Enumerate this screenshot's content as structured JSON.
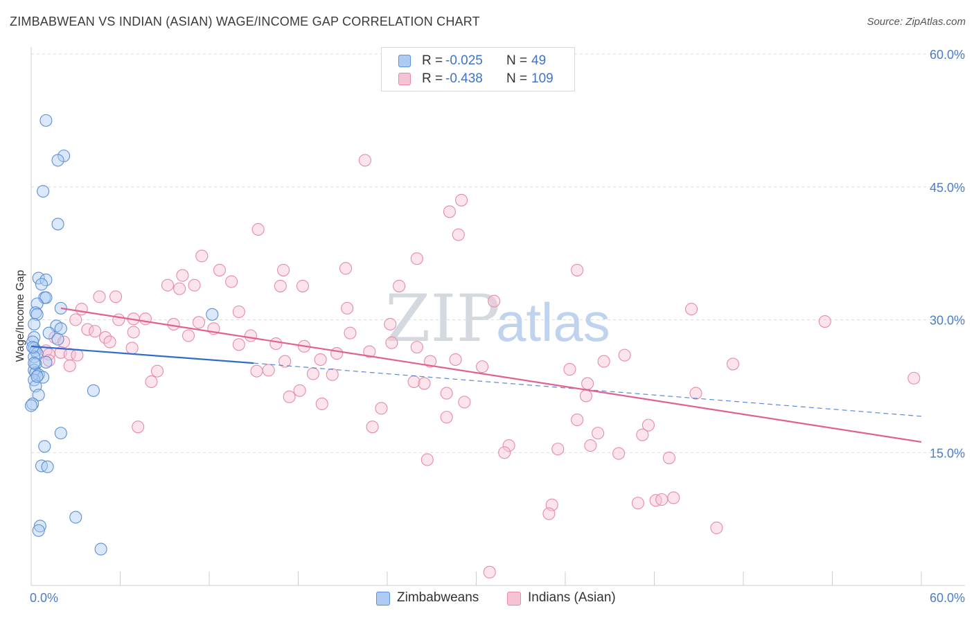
{
  "title": "ZIMBABWEAN VS INDIAN (ASIAN) WAGE/INCOME GAP CORRELATION CHART",
  "source": "Source: ZipAtlas.com",
  "watermark": {
    "zip": "ZIP",
    "atlas": "atlas"
  },
  "legend": {
    "series1": {
      "r_label": "R =",
      "r_value": "-0.025",
      "n_label": "N =",
      "n_value": "49"
    },
    "series2": {
      "r_label": "R =",
      "r_value": "-0.438",
      "n_label": "N =",
      "n_value": "109"
    }
  },
  "bottom_legend": {
    "series1": "Zimbabweans",
    "series2": "Indians (Asian)"
  },
  "colors": {
    "blue_fill": "#aecbf3",
    "blue_stroke": "#5b8fd6",
    "blue_line": "#2f6ccc",
    "pink_fill": "#f6c3d4",
    "pink_stroke": "#e68aa9",
    "pink_line": "#e0608e"
  },
  "chart_data": {
    "type": "scatter",
    "title": "ZIMBABWEAN VS INDIAN (ASIAN) WAGE/INCOME GAP CORRELATION CHART",
    "xlabel": "",
    "ylabel": "Wage/Income Gap",
    "xlim": [
      0,
      60
    ],
    "ylim": [
      0,
      60
    ],
    "x_tick_labels": [
      "0.0%",
      "60.0%"
    ],
    "y_ticks": [
      15,
      30,
      45,
      60
    ],
    "y_tick_labels": [
      "15.0%",
      "30.0%",
      "45.0%",
      "60.0%"
    ],
    "grid": true,
    "series": [
      {
        "name": "Zimbabweans",
        "points": [
          [
            1.0,
            52.5
          ],
          [
            2.2,
            48.5
          ],
          [
            1.8,
            48.0
          ],
          [
            0.8,
            44.5
          ],
          [
            1.8,
            40.8
          ],
          [
            0.5,
            34.7
          ],
          [
            1.0,
            34.5
          ],
          [
            0.7,
            34.0
          ],
          [
            0.9,
            32.5
          ],
          [
            1.0,
            32.5
          ],
          [
            0.4,
            31.8
          ],
          [
            2.0,
            31.3
          ],
          [
            0.3,
            30.8
          ],
          [
            0.4,
            30.6
          ],
          [
            12.2,
            30.6
          ],
          [
            1.7,
            29.3
          ],
          [
            0.2,
            29.5
          ],
          [
            2.0,
            29.0
          ],
          [
            1.2,
            28.5
          ],
          [
            0.2,
            28.0
          ],
          [
            1.8,
            27.8
          ],
          [
            0.1,
            27.5
          ],
          [
            0.2,
            26.8
          ],
          [
            0.3,
            26.5
          ],
          [
            0.4,
            26.2
          ],
          [
            0.2,
            25.8
          ],
          [
            1.0,
            25.2
          ],
          [
            0.3,
            25.0
          ],
          [
            0.2,
            24.3
          ],
          [
            0.3,
            24.0
          ],
          [
            0.5,
            23.8
          ],
          [
            0.8,
            23.5
          ],
          [
            0.2,
            23.2
          ],
          [
            0.3,
            22.5
          ],
          [
            4.2,
            22.0
          ],
          [
            0.5,
            21.5
          ],
          [
            0.1,
            20.5
          ],
          [
            2.0,
            17.2
          ],
          [
            0.9,
            15.7
          ],
          [
            0.7,
            13.5
          ],
          [
            1.1,
            13.4
          ],
          [
            3.0,
            7.7
          ],
          [
            0.6,
            6.7
          ],
          [
            0.5,
            6.2
          ],
          [
            4.7,
            4.1
          ],
          [
            0.0,
            20.3
          ],
          [
            0.1,
            26.9
          ],
          [
            0.2,
            25.1
          ],
          [
            0.4,
            23.6
          ]
        ]
      },
      {
        "name": "Indians (Asian)",
        "points": [
          [
            22.5,
            48.0
          ],
          [
            29.0,
            43.5
          ],
          [
            28.2,
            42.2
          ],
          [
            28.8,
            39.6
          ],
          [
            15.3,
            40.2
          ],
          [
            11.5,
            37.2
          ],
          [
            26.0,
            36.9
          ],
          [
            12.7,
            35.6
          ],
          [
            17.0,
            35.6
          ],
          [
            21.2,
            35.8
          ],
          [
            36.8,
            35.6
          ],
          [
            10.2,
            35.0
          ],
          [
            13.5,
            34.3
          ],
          [
            9.2,
            33.9
          ],
          [
            11.0,
            33.9
          ],
          [
            16.8,
            33.8
          ],
          [
            18.3,
            33.8
          ],
          [
            24.8,
            33.8
          ],
          [
            10.0,
            33.5
          ],
          [
            4.6,
            32.6
          ],
          [
            5.7,
            32.6
          ],
          [
            31.2,
            32.1
          ],
          [
            3.4,
            31.2
          ],
          [
            21.3,
            31.3
          ],
          [
            44.5,
            31.2
          ],
          [
            14.0,
            30.9
          ],
          [
            3.0,
            30.0
          ],
          [
            7.7,
            30.1
          ],
          [
            5.9,
            30.0
          ],
          [
            6.9,
            30.1
          ],
          [
            9.6,
            29.5
          ],
          [
            11.3,
            29.7
          ],
          [
            24.2,
            29.5
          ],
          [
            53.5,
            29.8
          ],
          [
            3.8,
            28.9
          ],
          [
            4.3,
            28.7
          ],
          [
            6.9,
            28.6
          ],
          [
            12.3,
            29.0
          ],
          [
            21.5,
            28.5
          ],
          [
            10.6,
            28.2
          ],
          [
            5.0,
            28.0
          ],
          [
            14.8,
            28.2
          ],
          [
            1.6,
            28.0
          ],
          [
            2.2,
            27.5
          ],
          [
            5.3,
            27.5
          ],
          [
            14.0,
            27.2
          ],
          [
            16.5,
            27.3
          ],
          [
            18.4,
            27.0
          ],
          [
            24.3,
            27.4
          ],
          [
            26.0,
            26.9
          ],
          [
            6.8,
            26.8
          ],
          [
            2.0,
            26.3
          ],
          [
            2.6,
            26.1
          ],
          [
            1.0,
            26.5
          ],
          [
            3.1,
            26.0
          ],
          [
            1.2,
            26.1
          ],
          [
            20.6,
            26.2
          ],
          [
            22.8,
            26.4
          ],
          [
            40.0,
            26.0
          ],
          [
            19.5,
            25.5
          ],
          [
            1.2,
            25.4
          ],
          [
            17.1,
            25.3
          ],
          [
            26.9,
            25.3
          ],
          [
            28.6,
            25.5
          ],
          [
            38.6,
            25.3
          ],
          [
            47.3,
            25.0
          ],
          [
            2.6,
            24.8
          ],
          [
            30.4,
            24.7
          ],
          [
            36.3,
            24.4
          ],
          [
            15.2,
            24.2
          ],
          [
            16.0,
            24.3
          ],
          [
            8.5,
            24.2
          ],
          [
            19.0,
            23.9
          ],
          [
            20.3,
            23.8
          ],
          [
            25.8,
            23.0
          ],
          [
            26.5,
            22.8
          ],
          [
            37.5,
            22.8
          ],
          [
            59.5,
            23.4
          ],
          [
            8.1,
            23.0
          ],
          [
            18.1,
            22.0
          ],
          [
            28.0,
            21.7
          ],
          [
            44.8,
            21.7
          ],
          [
            37.4,
            21.4
          ],
          [
            17.4,
            21.3
          ],
          [
            19.6,
            20.5
          ],
          [
            29.2,
            20.7
          ],
          [
            23.6,
            20.0
          ],
          [
            28.0,
            19.0
          ],
          [
            36.8,
            18.7
          ],
          [
            7.2,
            17.9
          ],
          [
            23.0,
            17.9
          ],
          [
            41.6,
            18.1
          ],
          [
            38.2,
            17.2
          ],
          [
            41.2,
            17.0
          ],
          [
            32.2,
            15.8
          ],
          [
            35.5,
            15.4
          ],
          [
            31.9,
            15.0
          ],
          [
            37.7,
            15.8
          ],
          [
            39.6,
            14.9
          ],
          [
            43.0,
            14.4
          ],
          [
            26.7,
            14.2
          ],
          [
            43.3,
            9.9
          ],
          [
            40.9,
            9.3
          ],
          [
            42.1,
            9.6
          ],
          [
            35.1,
            9.1
          ],
          [
            34.9,
            8.1
          ],
          [
            46.2,
            6.5
          ],
          [
            30.9,
            1.5
          ],
          [
            42.5,
            9.7
          ]
        ]
      }
    ],
    "trendlines": [
      {
        "series": "Zimbabweans",
        "solid": [
          [
            0,
            27.0
          ],
          [
            15,
            25.1
          ]
        ],
        "dashed": [
          [
            15,
            25.1
          ],
          [
            60,
            19.1
          ]
        ]
      },
      {
        "series": "Indians (Asian)",
        "solid": [
          [
            2,
            31.3
          ],
          [
            60,
            16.2
          ]
        ]
      }
    ]
  }
}
